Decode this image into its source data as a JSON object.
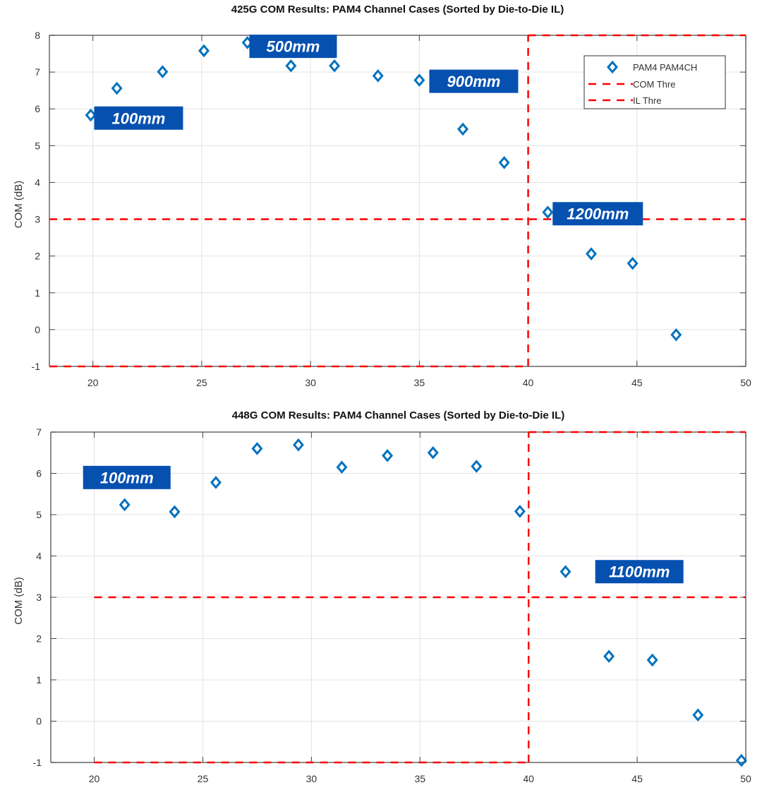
{
  "chart_data": [
    {
      "type": "scatter",
      "title": "425G COM Results: PAM4 Channel Cases (Sorted by Die-to-Die IL)",
      "xlabel": "",
      "ylabel": "COM (dB)",
      "xlim": [
        18,
        50
      ],
      "ylim": [
        -1,
        8
      ],
      "xticks": [
        20,
        25,
        30,
        35,
        40,
        45,
        50
      ],
      "yticks": [
        -1,
        0,
        1,
        2,
        3,
        4,
        5,
        6,
        7,
        8
      ],
      "grid": true,
      "legend": {
        "placement": "top-right",
        "entries": [
          "PAM4 PAM4CH",
          "COM Thre",
          "IL Thre"
        ]
      },
      "series": [
        {
          "name": "PAM4 PAM4CH",
          "marker": "diamond",
          "color": "#0072bd",
          "x": [
            19.9,
            21.1,
            23.2,
            25.1,
            27.1,
            29.1,
            31.1,
            33.1,
            35.0,
            37.0,
            38.9,
            40.9,
            42.9,
            44.8,
            46.8
          ],
          "y": [
            5.83,
            6.56,
            7.01,
            7.58,
            7.8,
            7.17,
            7.17,
            6.9,
            6.78,
            5.45,
            4.54,
            3.19,
            2.06,
            1.8,
            -0.14
          ]
        }
      ],
      "thresholds": {
        "com_thre": {
          "name": "COM Thre",
          "y": 3,
          "x_from": 18,
          "x_to": 50,
          "color": "#ff0000"
        },
        "il_thre": {
          "name": "IL Thre",
          "x": 40,
          "color": "#ff0000",
          "box": {
            "x_from": 18,
            "x_to": 40,
            "y_bottom": -1,
            "top_x_from": 40,
            "top_x_to": 50,
            "y_top": 8
          }
        }
      },
      "annotations": [
        {
          "text": "100mm",
          "x": 22.1,
          "y": 5.75
        },
        {
          "text": "500mm",
          "x": 29.2,
          "y": 7.7
        },
        {
          "text": "900mm",
          "x": 37.5,
          "y": 6.75
        },
        {
          "text": "1200mm",
          "x": 43.2,
          "y": 3.15
        }
      ]
    },
    {
      "type": "scatter",
      "title": "448G COM Results: PAM4 Channel Cases (Sorted by Die-to-Die IL)",
      "xlabel": "",
      "ylabel": "COM (dB)",
      "xlim": [
        18,
        50
      ],
      "ylim": [
        -1,
        7
      ],
      "xticks": [
        20,
        25,
        30,
        35,
        40,
        45,
        50
      ],
      "yticks": [
        -1,
        0,
        1,
        2,
        3,
        4,
        5,
        6,
        7
      ],
      "grid": true,
      "series": [
        {
          "name": "PAM4 PAM4CH",
          "marker": "diamond",
          "color": "#0072bd",
          "x": [
            21.4,
            23.7,
            25.6,
            27.5,
            29.4,
            31.4,
            33.5,
            35.6,
            37.6,
            39.6,
            41.7,
            43.7,
            45.7,
            47.8,
            49.8
          ],
          "y": [
            5.24,
            5.07,
            5.78,
            6.6,
            6.69,
            6.15,
            6.43,
            6.5,
            6.17,
            5.08,
            3.62,
            1.57,
            1.48,
            0.15,
            -0.95
          ]
        }
      ],
      "thresholds": {
        "com_thre": {
          "name": "COM Thre",
          "y": 3,
          "x_from": 20,
          "x_to": 50,
          "color": "#ff0000"
        },
        "il_thre": {
          "name": "IL Thre",
          "x": 40,
          "color": "#ff0000",
          "box": {
            "x_from": 20,
            "x_to": 40,
            "y_bottom": -1,
            "top_x_from": 40,
            "top_x_to": 50,
            "y_top": 7
          }
        }
      },
      "annotations": [
        {
          "text": "100mm",
          "x": 21.5,
          "y": 5.9
        },
        {
          "text": "1100mm",
          "x": 45.1,
          "y": 3.62
        }
      ]
    }
  ],
  "style": {
    "marker_color": "#0072bd",
    "threshold_color": "#ff0000",
    "annotation_bg": "#0650b0",
    "annotation_text": "#ffffff",
    "grid_color": "#e3e3e3",
    "axis_color": "#666666"
  }
}
